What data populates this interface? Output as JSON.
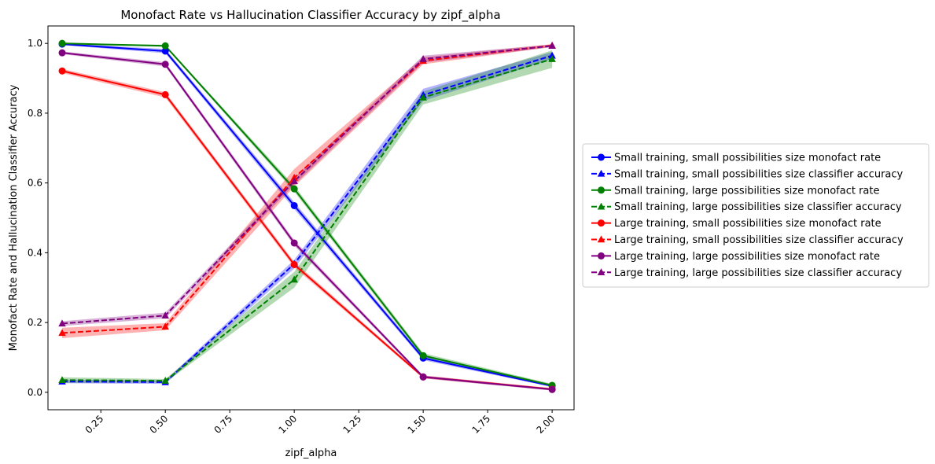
{
  "chart_data": {
    "type": "line",
    "title": "Monofact Rate vs Hallucination Classifier Accuracy by zipf_alpha",
    "xlabel": "zipf_alpha",
    "ylabel": "Monofact Rate and Hallucination Classifier Accuracy",
    "xlim": [
      0.045,
      2.085
    ],
    "ylim": [
      -0.05,
      1.05
    ],
    "xticks": [
      "0.25",
      "0.50",
      "0.75",
      "1.00",
      "1.25",
      "1.50",
      "1.75",
      "2.00"
    ],
    "yticks": [
      "0.0",
      "0.2",
      "0.4",
      "0.6",
      "0.8",
      "1.0"
    ],
    "grid": false,
    "legend_position": "outside-right",
    "x": [
      0.1,
      0.5,
      1.0,
      1.5,
      2.0
    ],
    "series": [
      {
        "name": "Small training, small possibilities size monofact rate",
        "color": "#0000ff",
        "style": "solid",
        "marker": "circle",
        "values": [
          0.998,
          0.978,
          0.535,
          0.098,
          0.018
        ],
        "lower": [
          0.995,
          0.972,
          0.525,
          0.092,
          0.015
        ],
        "upper": [
          1.0,
          0.984,
          0.545,
          0.104,
          0.021
        ]
      },
      {
        "name": "Small training, small possibilities size classifier accuracy",
        "color": "#0000ff",
        "style": "dashed",
        "marker": "triangle",
        "values": [
          0.031,
          0.029,
          0.368,
          0.852,
          0.965
        ],
        "lower": [
          0.026,
          0.024,
          0.355,
          0.835,
          0.955
        ],
        "upper": [
          0.036,
          0.034,
          0.38,
          0.87,
          0.975
        ]
      },
      {
        "name": "Small training, large possibilities size monofact rate",
        "color": "#008000",
        "style": "solid",
        "marker": "circle",
        "values": [
          1.0,
          0.993,
          0.583,
          0.105,
          0.02
        ],
        "lower": [
          0.997,
          0.99,
          0.575,
          0.098,
          0.016
        ],
        "upper": [
          1.0,
          0.996,
          0.592,
          0.112,
          0.024
        ]
      },
      {
        "name": "Small training, large possibilities size classifier accuracy",
        "color": "#008000",
        "style": "dashed",
        "marker": "triangle",
        "values": [
          0.035,
          0.033,
          0.323,
          0.845,
          0.955
        ],
        "lower": [
          0.027,
          0.028,
          0.3,
          0.825,
          0.93
        ],
        "upper": [
          0.043,
          0.038,
          0.345,
          0.862,
          0.98
        ]
      },
      {
        "name": "Large training, small possibilities size monofact rate",
        "color": "#ff0000",
        "style": "solid",
        "marker": "circle",
        "values": [
          0.921,
          0.853,
          0.366,
          0.044,
          0.009
        ],
        "lower": [
          0.915,
          0.845,
          0.358,
          0.04,
          0.006
        ],
        "upper": [
          0.927,
          0.86,
          0.374,
          0.048,
          0.012
        ]
      },
      {
        "name": "Large training, small possibilities size classifier accuracy",
        "color": "#ff0000",
        "style": "dashed",
        "marker": "triangle",
        "values": [
          0.17,
          0.188,
          0.615,
          0.95,
          0.994
        ],
        "lower": [
          0.155,
          0.178,
          0.59,
          0.94,
          0.99
        ],
        "upper": [
          0.185,
          0.198,
          0.64,
          0.96,
          0.998
        ]
      },
      {
        "name": "Large training, large possibilities size monofact rate",
        "color": "#800080",
        "style": "solid",
        "marker": "circle",
        "values": [
          0.973,
          0.94,
          0.428,
          0.044,
          0.008
        ],
        "lower": [
          0.969,
          0.934,
          0.42,
          0.04,
          0.005
        ],
        "upper": [
          0.977,
          0.946,
          0.436,
          0.048,
          0.011
        ]
      },
      {
        "name": "Large training, large possibilities size classifier accuracy",
        "color": "#800080",
        "style": "dashed",
        "marker": "triangle",
        "values": [
          0.197,
          0.22,
          0.605,
          0.955,
          0.993
        ],
        "lower": [
          0.19,
          0.212,
          0.595,
          0.945,
          0.989
        ],
        "upper": [
          0.204,
          0.228,
          0.615,
          0.965,
          0.997
        ]
      }
    ]
  }
}
